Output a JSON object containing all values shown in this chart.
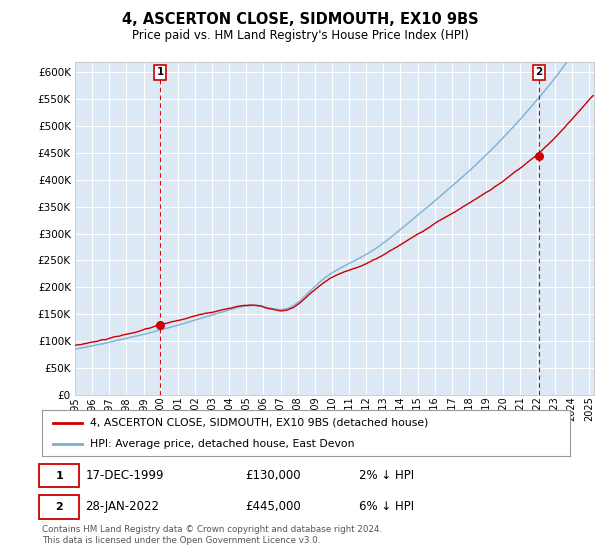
{
  "title": "4, ASCERTON CLOSE, SIDMOUTH, EX10 9BS",
  "subtitle": "Price paid vs. HM Land Registry's House Price Index (HPI)",
  "ylim": [
    0,
    620000
  ],
  "yticks": [
    0,
    50000,
    100000,
    150000,
    200000,
    250000,
    300000,
    350000,
    400000,
    450000,
    500000,
    550000,
    600000
  ],
  "sale1_year": 1999.96,
  "sale1_price": 130000,
  "sale2_year": 2022.08,
  "sale2_price": 445000,
  "legend_line1": "4, ASCERTON CLOSE, SIDMOUTH, EX10 9BS (detached house)",
  "legend_line2": "HPI: Average price, detached house, East Devon",
  "footnote": "Contains HM Land Registry data © Crown copyright and database right 2024.\nThis data is licensed under the Open Government Licence v3.0.",
  "line_color_red": "#cc0000",
  "line_color_blue": "#7ab0d4",
  "bg_color": "#dce9f5",
  "grid_color": "#ffffff",
  "xlim_start": 1995,
  "xlim_end": 2025.3
}
